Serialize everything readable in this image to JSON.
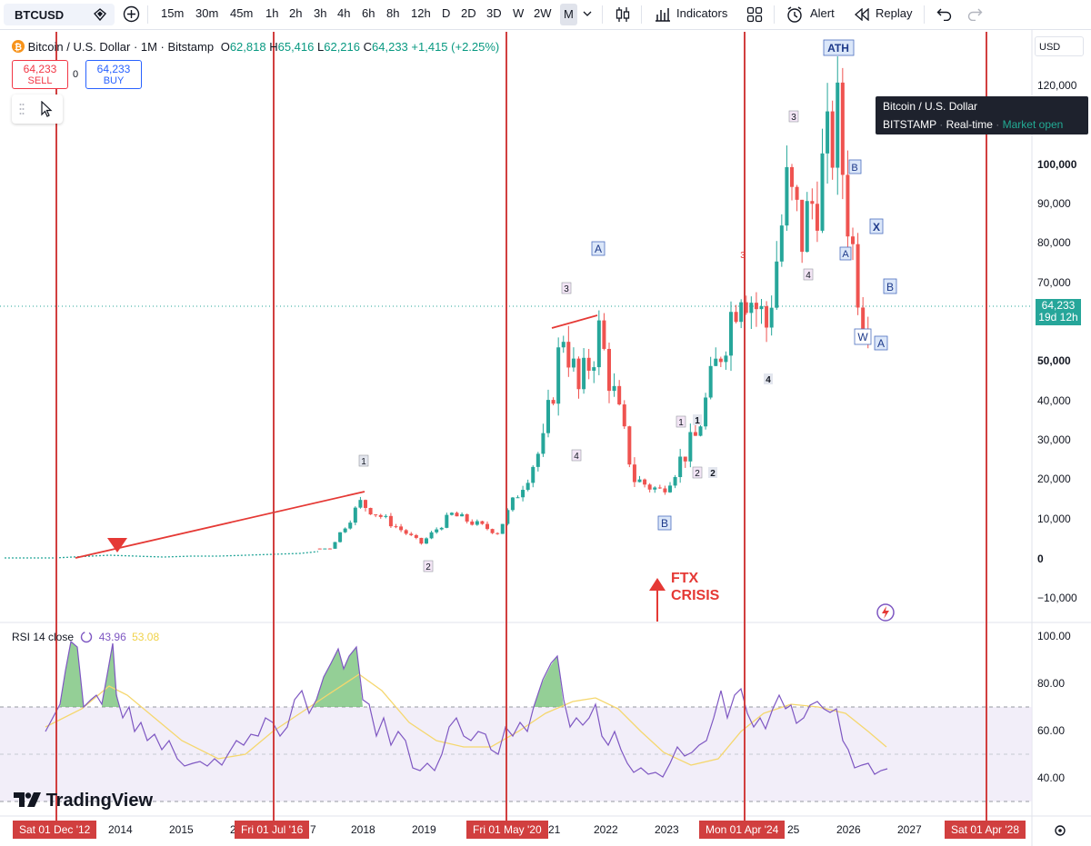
{
  "toolbar": {
    "symbol": "BTCUSD",
    "intervals": [
      "15m",
      "30m",
      "45m",
      "1h",
      "2h",
      "3h",
      "4h",
      "6h",
      "8h",
      "12h",
      "D",
      "2D",
      "3D",
      "W",
      "2W",
      "M"
    ],
    "active_interval": "M",
    "indicators_label": "Indicators",
    "alert_label": "Alert",
    "replay_label": "Replay"
  },
  "legend": {
    "title": "Bitcoin / U.S. Dollar · 1M · Bitstamp",
    "o_label": "O",
    "o_value": "62,818",
    "h_label": "H",
    "h_value": "65,416",
    "l_label": "L",
    "l_value": "62,216",
    "c_label": "C",
    "c_value": "64,233",
    "change": "+1,415 (+2.25%)"
  },
  "order_buttons": {
    "sell_price": "64,233",
    "sell_label": "SELL",
    "spread": "0",
    "buy_price": "64,233",
    "buy_label": "BUY"
  },
  "currency": "USD",
  "tooltip": {
    "line1": "Bitcoin / U.S. Dollar",
    "exchange": "BITSTAMP",
    "realtime": "Real-time",
    "status": "Market open"
  },
  "last_price": {
    "price": "64,233",
    "countdown": "19d 12h"
  },
  "price_axis": [
    "120,000",
    "100,000",
    "90,000",
    "80,000",
    "70,000",
    "50,000",
    "40,000",
    "30,000",
    "20,000",
    "10,000",
    "0",
    "−10,000"
  ],
  "rsi": {
    "label": "RSI 14 close",
    "value": "43.96",
    "ma_value": "53.08",
    "axis": [
      "100.00",
      "80.00",
      "60.00",
      "40.00"
    ]
  },
  "time_axis": [
    "2014",
    "2015",
    "2018",
    "2019",
    "2022",
    "2023",
    "2026",
    "2027"
  ],
  "vertical_markers": [
    "Sat 01 Dec '12",
    "Fri 01 Jul '16",
    "Fri 01 May '20",
    "Mon 01 Apr '24",
    "Sat 01 Apr '28"
  ],
  "partial_axis_fragments": [
    "2",
    "7",
    "21",
    "25"
  ],
  "annotations": {
    "wave_labels": [
      "1",
      "2",
      "3",
      "4",
      "A",
      "B",
      "1",
      "2",
      "1",
      "2",
      "3",
      "4",
      "ATH",
      "B",
      "X",
      "A",
      "B",
      "W",
      "A",
      "4",
      "3"
    ],
    "ath": "ATH",
    "ftx_line1": "FTX",
    "ftx_line2": "CRISIS"
  },
  "brand": "TradingView",
  "colors": {
    "up": "#26a69a",
    "down": "#ef5350",
    "marker": "#d13f3f",
    "rsi": "#7e57c2",
    "rsi_ma": "#f7e08a"
  },
  "chart_data": {
    "type": "candlestick",
    "title": "Bitcoin / U.S. Dollar · 1M · Bitstamp",
    "interval": "1M",
    "ylim": [
      -13000,
      130000
    ],
    "series": [
      {
        "name": "BTCUSD",
        "x": [
          "2013-12",
          "2015-06",
          "2017-06",
          "2017-12",
          "2018-12",
          "2019-06",
          "2020-03",
          "2020-12",
          "2021-04",
          "2021-07",
          "2021-11",
          "2022-06",
          "2022-11",
          "2023-06",
          "2024-03",
          "2024-08",
          "2024-12",
          "2025-03",
          "2025-10",
          "2026-01",
          "2026-03",
          "2026-05"
        ],
        "values": [
          1000,
          250,
          2500,
          14000,
          3700,
          11000,
          6500,
          29000,
          58000,
          42000,
          57000,
          20000,
          17000,
          30500,
          71000,
          59000,
          93000,
          82000,
          110000,
          78000,
          63000,
          64233
        ]
      }
    ],
    "indicator": {
      "name": "RSI 14 close",
      "values_shown": [
        43.96,
        53.08
      ],
      "ylim": [
        30,
        100
      ],
      "levels": [
        70,
        50,
        30
      ]
    }
  }
}
